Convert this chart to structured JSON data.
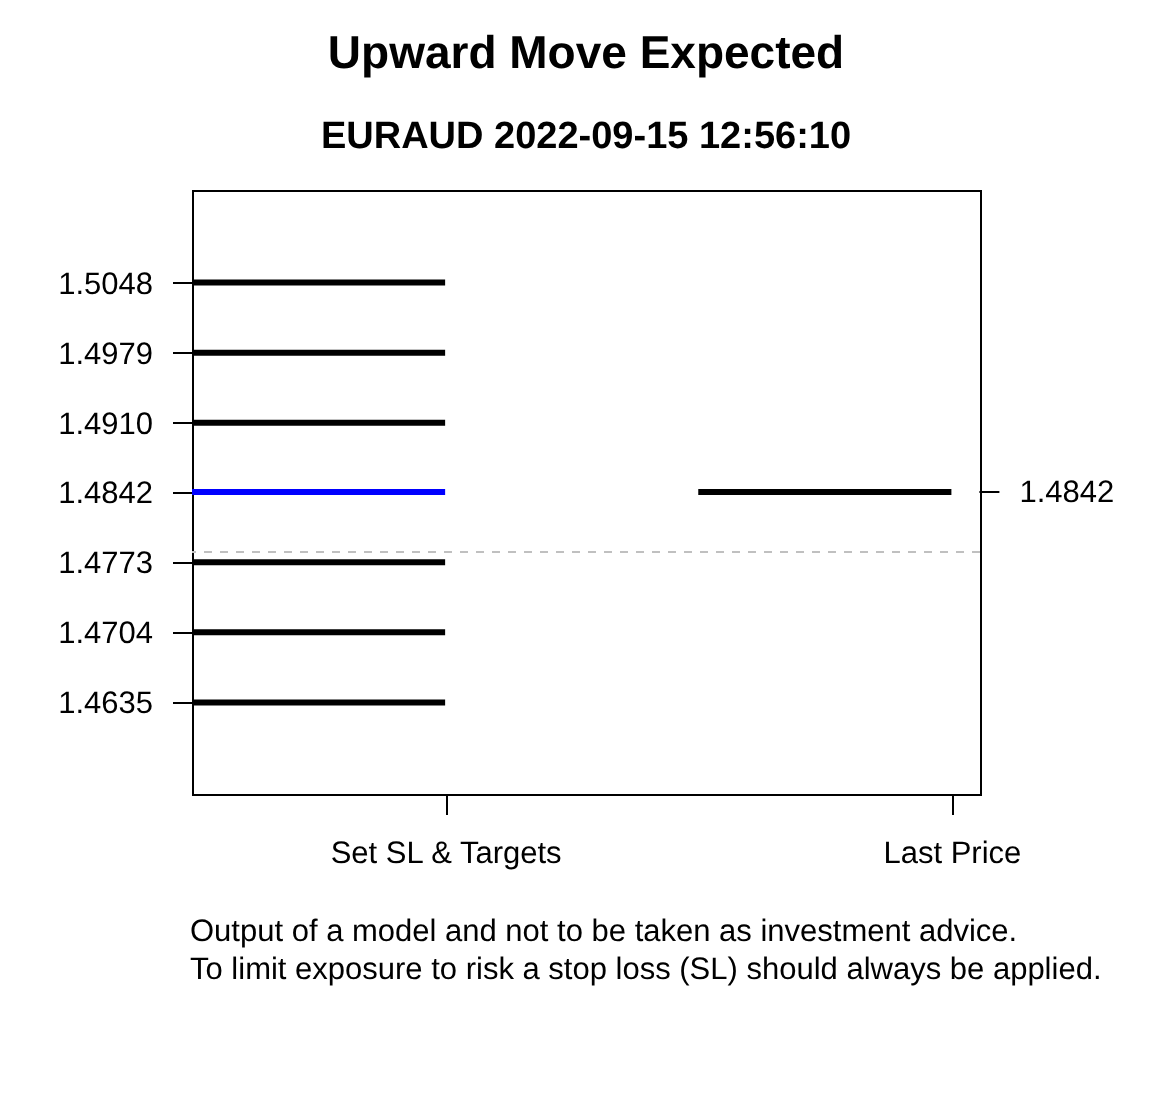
{
  "chart_data": {
    "type": "line",
    "title": "Upward Move Expected",
    "subtitle": "EURAUD 2022-09-15 12:56:10",
    "categories": [
      null,
      "Set SL & Targets",
      null,
      "Last Price"
    ],
    "series": [
      {
        "color": "#000000",
        "values": [
          1.5048,
          1.5048,
          null,
          null
        ]
      },
      {
        "color": "#000000",
        "values": [
          1.4979,
          1.4979,
          null,
          null
        ]
      },
      {
        "color": "#000000",
        "values": [
          1.491,
          1.491,
          null,
          null
        ]
      },
      {
        "color": "#0000ff",
        "values": [
          1.4842,
          1.4842,
          null,
          null
        ]
      },
      {
        "color": "#000000",
        "values": [
          1.4773,
          1.4773,
          null,
          null
        ]
      },
      {
        "color": "#000000",
        "values": [
          1.4704,
          1.4704,
          null,
          null
        ]
      },
      {
        "color": "#000000",
        "values": [
          1.4635,
          1.4635,
          null,
          null
        ]
      },
      {
        "color": "#000000",
        "values": [
          null,
          null,
          1.4842,
          1.4842
        ]
      }
    ],
    "ylim": [
      1.4545,
      1.5139
    ],
    "yticks": [
      1.5048,
      1.4979,
      {
        "value": 1.491,
        "label": "1.4910"
      },
      1.4842,
      1.4773,
      1.4704,
      1.4635
    ],
    "ref_lines": [
      {
        "axis": "y",
        "value": 1.4783,
        "color": "#c0c0c0",
        "line_style": "dashed"
      }
    ],
    "annotations": [
      {
        "text": "1.4842",
        "x": "Last Price",
        "y": 1.4842
      },
      "Output of a model and not to be taken as investment advice.",
      "To limit exposure to risk a stop loss (SL) should always be applied."
    ],
    "grid": false,
    "line_style": "solid"
  }
}
